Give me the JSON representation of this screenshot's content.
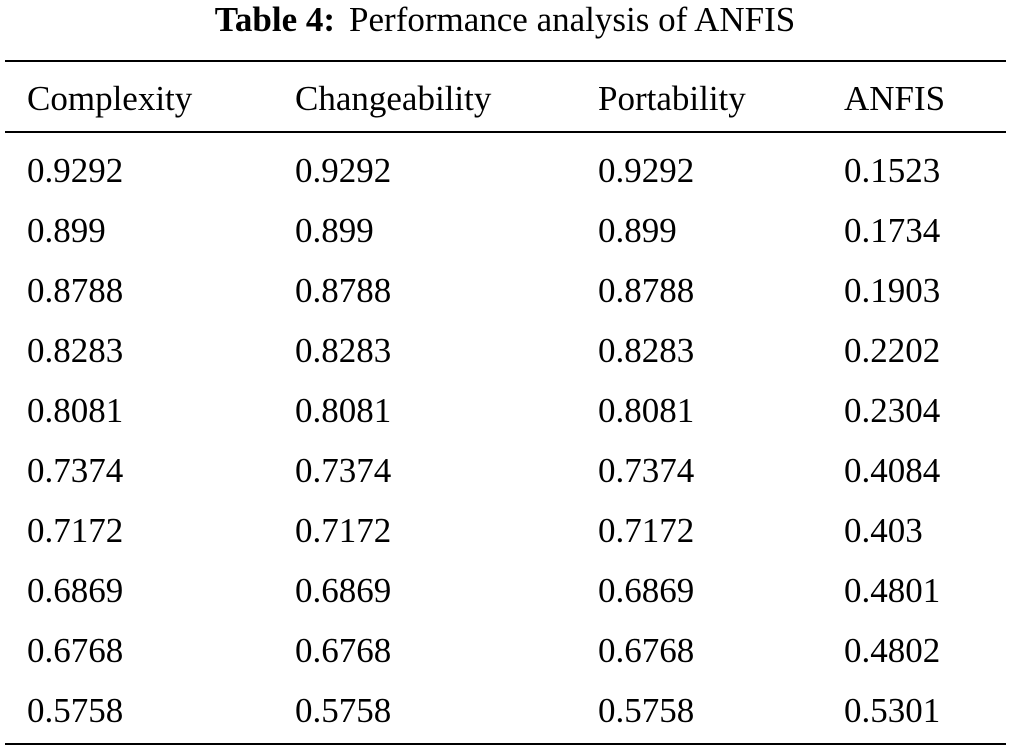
{
  "caption": {
    "label": "Table 4:",
    "text": "Performance analysis of ANFIS"
  },
  "table": {
    "headers": [
      "Complexity",
      "Changeability",
      "Portability",
      "ANFIS"
    ],
    "rows": [
      [
        "0.9292",
        "0.9292",
        "0.9292",
        "0.1523"
      ],
      [
        "0.899",
        "0.899",
        "0.899",
        "0.1734"
      ],
      [
        "0.8788",
        "0.8788",
        "0.8788",
        "0.1903"
      ],
      [
        "0.8283",
        "0.8283",
        "0.8283",
        "0.2202"
      ],
      [
        "0.8081",
        "0.8081",
        "0.8081",
        "0.2304"
      ],
      [
        "0.7374",
        "0.7374",
        "0.7374",
        "0.4084"
      ],
      [
        "0.7172",
        "0.7172",
        "0.7172",
        "0.403"
      ],
      [
        "0.6869",
        "0.6869",
        "0.6869",
        "0.4801"
      ],
      [
        "0.6768",
        "0.6768",
        "0.6768",
        "0.4802"
      ],
      [
        "0.5758",
        "0.5758",
        "0.5758",
        "0.5301"
      ]
    ]
  }
}
